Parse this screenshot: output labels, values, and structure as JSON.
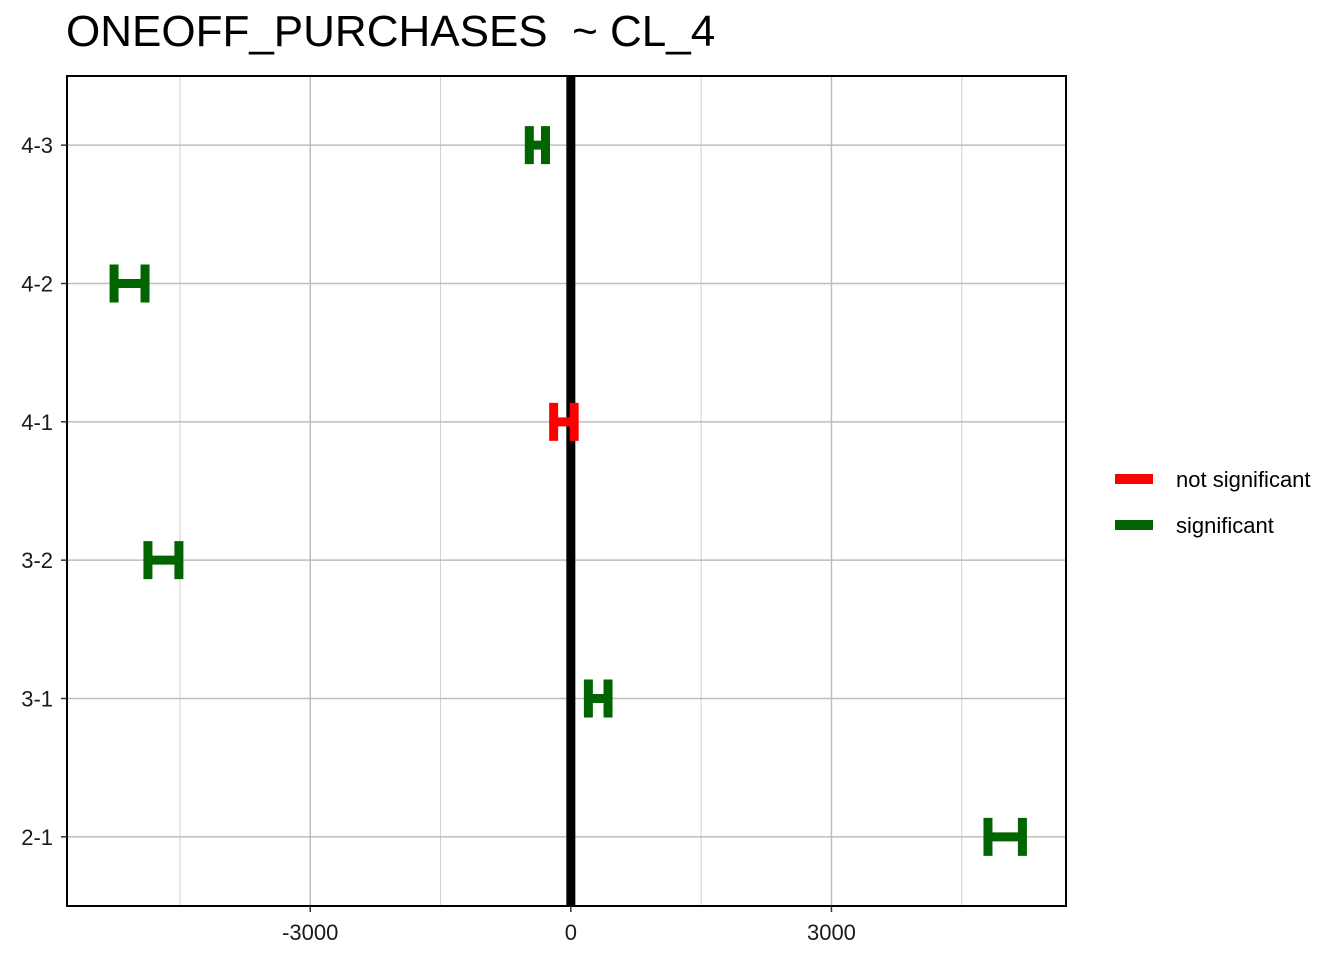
{
  "chart_data": {
    "type": "errorbar",
    "title": "ONEOFF_PURCHASES  ~ CL_4",
    "xlabel": "",
    "ylabel": "",
    "xlim": [
      -5800,
      5700
    ],
    "x_ticks": [
      -3000,
      0,
      3000
    ],
    "x_tick_labels": [
      "-3000",
      "0",
      "3000"
    ],
    "x_minor_gridlines": [
      -4500,
      -1500,
      1500,
      4500
    ],
    "categories": [
      "2-1",
      "3-1",
      "3-2",
      "4-1",
      "4-2",
      "4-3"
    ],
    "reference_line_x": 0,
    "grid": true,
    "legend_position": "right",
    "legend": [
      {
        "label": "not significant",
        "color": "#ff0000"
      },
      {
        "label": "significant",
        "color": "#006400"
      }
    ],
    "intervals": [
      {
        "category": "2-1",
        "lower": 4750,
        "upper": 5250,
        "status": "significant"
      },
      {
        "category": "3-1",
        "lower": 150,
        "upper": 480,
        "status": "significant"
      },
      {
        "category": "3-2",
        "lower": -4920,
        "upper": -4460,
        "status": "significant"
      },
      {
        "category": "4-1",
        "lower": -250,
        "upper": 90,
        "status": "not significant"
      },
      {
        "category": "4-2",
        "lower": -5310,
        "upper": -4850,
        "status": "significant"
      },
      {
        "category": "4-3",
        "lower": -530,
        "upper": -240,
        "status": "significant"
      }
    ]
  }
}
